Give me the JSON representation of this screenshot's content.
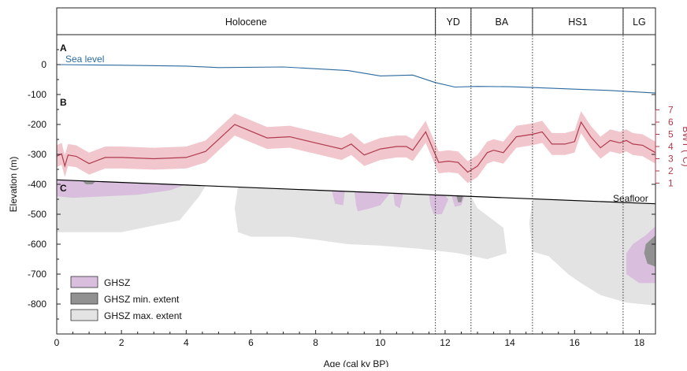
{
  "chart_data": {
    "type": "line",
    "xlabel": "Age (cal ky BP)",
    "ylabel": "Elevation (m)",
    "y2label": "BWT (°C)",
    "xlim": [
      0,
      18.5
    ],
    "ylim": [
      -900,
      100
    ],
    "y2lim": [
      0,
      8
    ],
    "x_ticks": [
      0,
      2,
      4,
      6,
      8,
      10,
      12,
      14,
      16,
      18
    ],
    "y_ticks": [
      0,
      -100,
      -200,
      -300,
      -400,
      -500,
      -600,
      -700,
      -800
    ],
    "y2_ticks": [
      1,
      2,
      3,
      4,
      5,
      6,
      7
    ],
    "periods": [
      {
        "label": "Holocene",
        "start": 0,
        "end": 11.7
      },
      {
        "label": "YD",
        "start": 11.7,
        "end": 12.8
      },
      {
        "label": "BA",
        "start": 12.8,
        "end": 14.7
      },
      {
        "label": "HS1",
        "start": 14.7,
        "end": 17.5
      },
      {
        "label": "LG",
        "start": 17.5,
        "end": 18.5
      }
    ],
    "panel_labels": [
      "A",
      "B",
      "C"
    ],
    "series": [
      {
        "name": "Sea level",
        "color": "#2b6a9e",
        "x": [
          0,
          2,
          4,
          5,
          7,
          9,
          10,
          11,
          11.7,
          12.3,
          13,
          14,
          15,
          16,
          17,
          18.5
        ],
        "y": [
          0,
          -2,
          -5,
          -10,
          -8,
          -20,
          -38,
          -35,
          -60,
          -75,
          -73,
          -74,
          -78,
          -82,
          -86,
          -95
        ]
      },
      {
        "name": "",
        "color": "#b03a4e",
        "band_color": "#f1c7cd",
        "x": [
          0,
          0.15,
          0.25,
          0.35,
          0.6,
          1,
          1.5,
          2,
          3,
          4,
          4.6,
          5.5,
          6.5,
          7.2,
          8,
          8.8,
          9.1,
          9.5,
          10,
          10.5,
          10.8,
          11,
          11.4,
          11.8,
          12.1,
          12.4,
          12.7,
          13,
          13.3,
          13.5,
          13.8,
          14.2,
          14.7,
          15,
          15.3,
          15.7,
          16,
          16.2,
          16.5,
          16.8,
          17.1,
          17.4,
          17.6,
          17.8,
          18.1,
          18.5
        ],
        "y": [
          3.2,
          3.4,
          2.4,
          3.3,
          3.2,
          2.6,
          3.1,
          3.1,
          3.0,
          3.1,
          3.6,
          5.8,
          4.7,
          4.8,
          4.3,
          3.8,
          4.2,
          3.3,
          3.8,
          4.0,
          4.0,
          3.7,
          5.2,
          2.7,
          2.8,
          2.7,
          1.9,
          2.4,
          3.5,
          3.7,
          3.5,
          4.8,
          5.0,
          5.2,
          4.2,
          4.2,
          4.4,
          6.0,
          4.8,
          3.9,
          4.5,
          4.3,
          4.5,
          4.2,
          4.1,
          3.5
        ]
      }
    ],
    "shaded_areas": [
      {
        "name": "GHSZ",
        "color": "#d9bede",
        "legend": true
      },
      {
        "name": "GHSZ min. extent",
        "color": "#919191",
        "legend": true
      },
      {
        "name": "GHSZ max. extent",
        "color": "#e3e3e3",
        "legend": true
      },
      {
        "name": "Seafloor",
        "color": "#000000",
        "legend": false,
        "x": [
          0,
          18.5
        ],
        "y": [
          -385,
          -465
        ]
      }
    ],
    "grid": false,
    "legend_position": "bottom-left"
  }
}
